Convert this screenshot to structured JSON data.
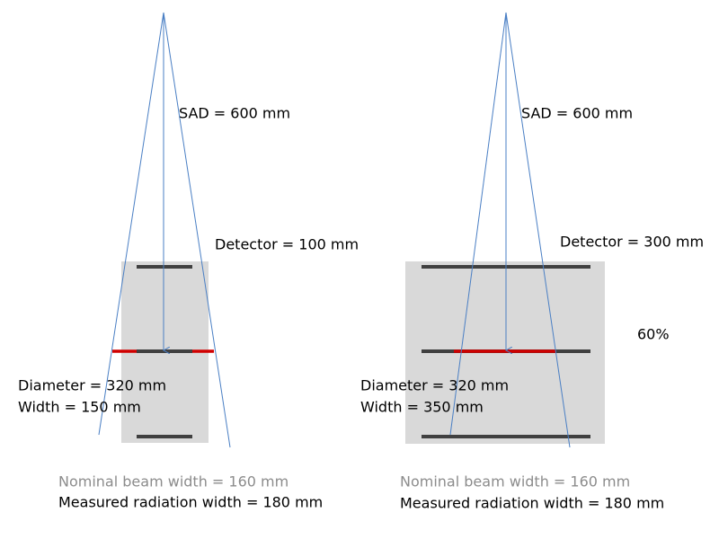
{
  "panels": [
    {
      "sad": "SAD = 600 mm",
      "detector": "Detector = 100 mm",
      "diameter": "Diameter = 320 mm",
      "width": "Width = 150 mm",
      "nominal": "Nominal beam width = 160 mm",
      "measured": "Measured radiation width = 180 mm"
    },
    {
      "sad": "SAD = 600 mm",
      "detector": "Detector = 300 mm",
      "diameter": "Diameter = 320 mm",
      "width": "Width = 350 mm",
      "nominal": "Nominal beam width = 160 mm",
      "measured": "Measured radiation width = 180 mm"
    }
  ],
  "note": "60%"
}
